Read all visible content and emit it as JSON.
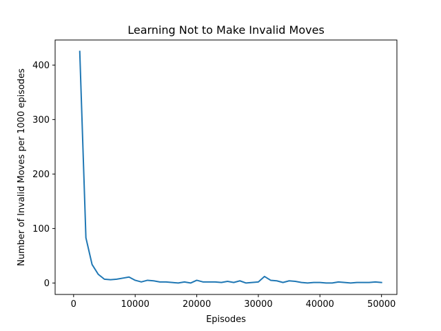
{
  "chart_data": {
    "type": "line",
    "title": "Learning Not to Make Invalid Moves",
    "xlabel": "Episodes",
    "ylabel": "Number of Invalid Moves per 1000 episodes",
    "xlim": [
      -3000,
      52500
    ],
    "ylim": [
      -21,
      446
    ],
    "xticks": [
      0,
      10000,
      20000,
      30000,
      40000,
      50000
    ],
    "yticks": [
      0,
      100,
      200,
      300,
      400
    ],
    "grid": false,
    "colors": {
      "line": "#1f77b4",
      "axes": "#000000"
    },
    "series": [
      {
        "x": [
          1000,
          2000,
          3000,
          4000,
          5000,
          6000,
          7000,
          8000,
          9000,
          10000,
          11000,
          12000,
          13000,
          14000,
          15000,
          16000,
          17000,
          18000,
          19000,
          20000,
          21000,
          22000,
          23000,
          24000,
          25000,
          26000,
          27000,
          28000,
          29000,
          30000,
          31000,
          32000,
          33000,
          34000,
          35000,
          36000,
          37000,
          38000,
          39000,
          40000,
          41000,
          42000,
          43000,
          44000,
          45000,
          46000,
          47000,
          48000,
          49000,
          50000
        ],
        "y": [
          425,
          83,
          34,
          16,
          7,
          6,
          7,
          9,
          11,
          5,
          2,
          5,
          4,
          2,
          2,
          1,
          0,
          2,
          0,
          5,
          2,
          2,
          2,
          1,
          3,
          1,
          4,
          0,
          1,
          2,
          12,
          5,
          4,
          1,
          4,
          3,
          1,
          0,
          1,
          1,
          0,
          0,
          2,
          1,
          0,
          1,
          1,
          1,
          2,
          1
        ]
      }
    ]
  }
}
